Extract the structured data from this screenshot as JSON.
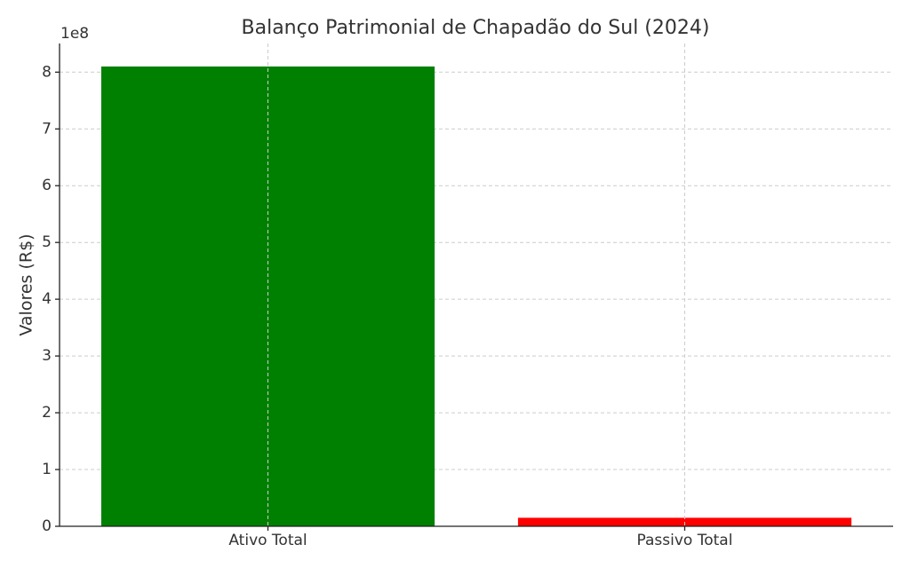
{
  "chart_data": {
    "type": "bar",
    "title": "Balanço Patrimonial de Chapadão do Sul (2024)",
    "y_label": "Valores (R$)",
    "y_offset_label": "1e8",
    "categories": [
      "Ativo Total",
      "Passivo Total"
    ],
    "values": [
      810000000,
      15000000
    ],
    "colors": [
      "#008000",
      "#ff0000"
    ],
    "ylim": [
      0,
      850500000
    ],
    "yticks": [
      {
        "value": 0,
        "label": "0"
      },
      {
        "value": 100000000,
        "label": "1"
      },
      {
        "value": 200000000,
        "label": "2"
      },
      {
        "value": 300000000,
        "label": "3"
      },
      {
        "value": 400000000,
        "label": "4"
      },
      {
        "value": 500000000,
        "label": "5"
      },
      {
        "value": 600000000,
        "label": "6"
      },
      {
        "value": 700000000,
        "label": "7"
      },
      {
        "value": 800000000,
        "label": "8"
      }
    ],
    "grid": true
  }
}
